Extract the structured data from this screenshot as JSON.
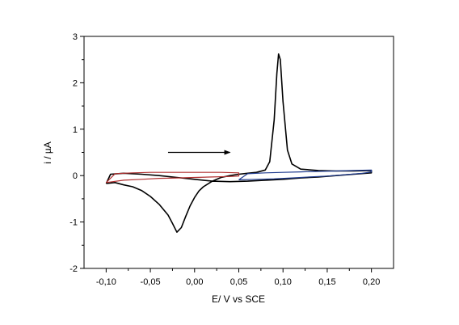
{
  "chart_data": {
    "type": "line",
    "title": "",
    "xlabel": "E/ V vs SCE",
    "ylabel": "i / µA",
    "xlim": [
      -0.125,
      0.225
    ],
    "ylim": [
      -2,
      3
    ],
    "x_ticks": [
      -0.1,
      -0.05,
      0.0,
      0.05,
      0.1,
      0.15,
      0.2
    ],
    "x_tick_labels": [
      "-0,10",
      "-0,05",
      "0,00",
      "0,05",
      "0,10",
      "0,15",
      "0,20"
    ],
    "y_ticks": [
      -2,
      -1,
      0,
      1,
      2,
      3
    ],
    "y_tick_labels": [
      "-2",
      "-1",
      "0",
      "1",
      "2",
      "3"
    ],
    "grid": false,
    "legend": "none",
    "annotations": [
      {
        "type": "arrow",
        "direction": "right",
        "from": [
          -0.03,
          0.5
        ],
        "to": [
          0.04,
          0.5
        ]
      }
    ],
    "series": [
      {
        "color": "#000000",
        "points": [
          [
            -0.1,
            -0.17
          ],
          [
            -0.09,
            -0.15
          ],
          [
            -0.08,
            -0.2
          ],
          [
            -0.07,
            -0.24
          ],
          [
            -0.06,
            -0.32
          ],
          [
            -0.05,
            -0.45
          ],
          [
            -0.04,
            -0.62
          ],
          [
            -0.03,
            -0.85
          ],
          [
            -0.025,
            -1.03
          ],
          [
            -0.02,
            -1.22
          ],
          [
            -0.015,
            -1.12
          ],
          [
            -0.01,
            -0.88
          ],
          [
            -0.005,
            -0.65
          ],
          [
            0.0,
            -0.47
          ],
          [
            0.005,
            -0.33
          ],
          [
            0.01,
            -0.24
          ],
          [
            0.02,
            -0.12
          ],
          [
            0.03,
            -0.04
          ],
          [
            0.04,
            0.0
          ],
          [
            0.05,
            0.03
          ],
          [
            0.06,
            0.05
          ],
          [
            0.07,
            0.07
          ],
          [
            0.08,
            0.12
          ],
          [
            0.085,
            0.3
          ],
          [
            0.09,
            1.2
          ],
          [
            0.093,
            2.2
          ],
          [
            0.095,
            2.62
          ],
          [
            0.097,
            2.5
          ],
          [
            0.1,
            1.6
          ],
          [
            0.105,
            0.55
          ],
          [
            0.11,
            0.25
          ],
          [
            0.12,
            0.14
          ],
          [
            0.14,
            0.11
          ],
          [
            0.16,
            0.1
          ],
          [
            0.18,
            0.1
          ],
          [
            0.2,
            0.11
          ],
          [
            0.2,
            0.06
          ],
          [
            0.18,
            0.03
          ],
          [
            0.16,
            0.0
          ],
          [
            0.14,
            -0.03
          ],
          [
            0.12,
            -0.05
          ],
          [
            0.1,
            -0.08
          ],
          [
            0.08,
            -0.1
          ],
          [
            0.06,
            -0.12
          ],
          [
            0.04,
            -0.13
          ],
          [
            0.02,
            -0.12
          ],
          [
            0.0,
            -0.08
          ],
          [
            -0.02,
            -0.04
          ],
          [
            -0.04,
            0.0
          ],
          [
            -0.06,
            0.03
          ],
          [
            -0.08,
            0.05
          ],
          [
            -0.095,
            0.03
          ],
          [
            -0.1,
            -0.17
          ]
        ]
      },
      {
        "color": "#b03030",
        "points": [
          [
            -0.1,
            -0.15
          ],
          [
            -0.08,
            -0.1
          ],
          [
            -0.06,
            -0.08
          ],
          [
            -0.04,
            -0.06
          ],
          [
            -0.02,
            -0.05
          ],
          [
            0.0,
            -0.04
          ],
          [
            0.02,
            -0.03
          ],
          [
            0.04,
            -0.02
          ],
          [
            0.05,
            -0.01
          ],
          [
            0.05,
            0.06
          ],
          [
            0.03,
            0.07
          ],
          [
            0.01,
            0.07
          ],
          [
            -0.01,
            0.07
          ],
          [
            -0.03,
            0.07
          ],
          [
            -0.05,
            0.07
          ],
          [
            -0.07,
            0.06
          ],
          [
            -0.09,
            0.04
          ],
          [
            -0.1,
            -0.15
          ]
        ]
      },
      {
        "color": "#1f3b8f",
        "points": [
          [
            0.05,
            -0.09
          ],
          [
            0.07,
            -0.08
          ],
          [
            0.09,
            -0.07
          ],
          [
            0.11,
            -0.05
          ],
          [
            0.13,
            -0.03
          ],
          [
            0.15,
            -0.01
          ],
          [
            0.17,
            0.02
          ],
          [
            0.19,
            0.05
          ],
          [
            0.2,
            0.08
          ],
          [
            0.2,
            0.12
          ],
          [
            0.18,
            0.11
          ],
          [
            0.16,
            0.1
          ],
          [
            0.14,
            0.09
          ],
          [
            0.12,
            0.08
          ],
          [
            0.1,
            0.07
          ],
          [
            0.08,
            0.06
          ],
          [
            0.06,
            0.04
          ],
          [
            0.05,
            -0.09
          ]
        ]
      }
    ]
  }
}
